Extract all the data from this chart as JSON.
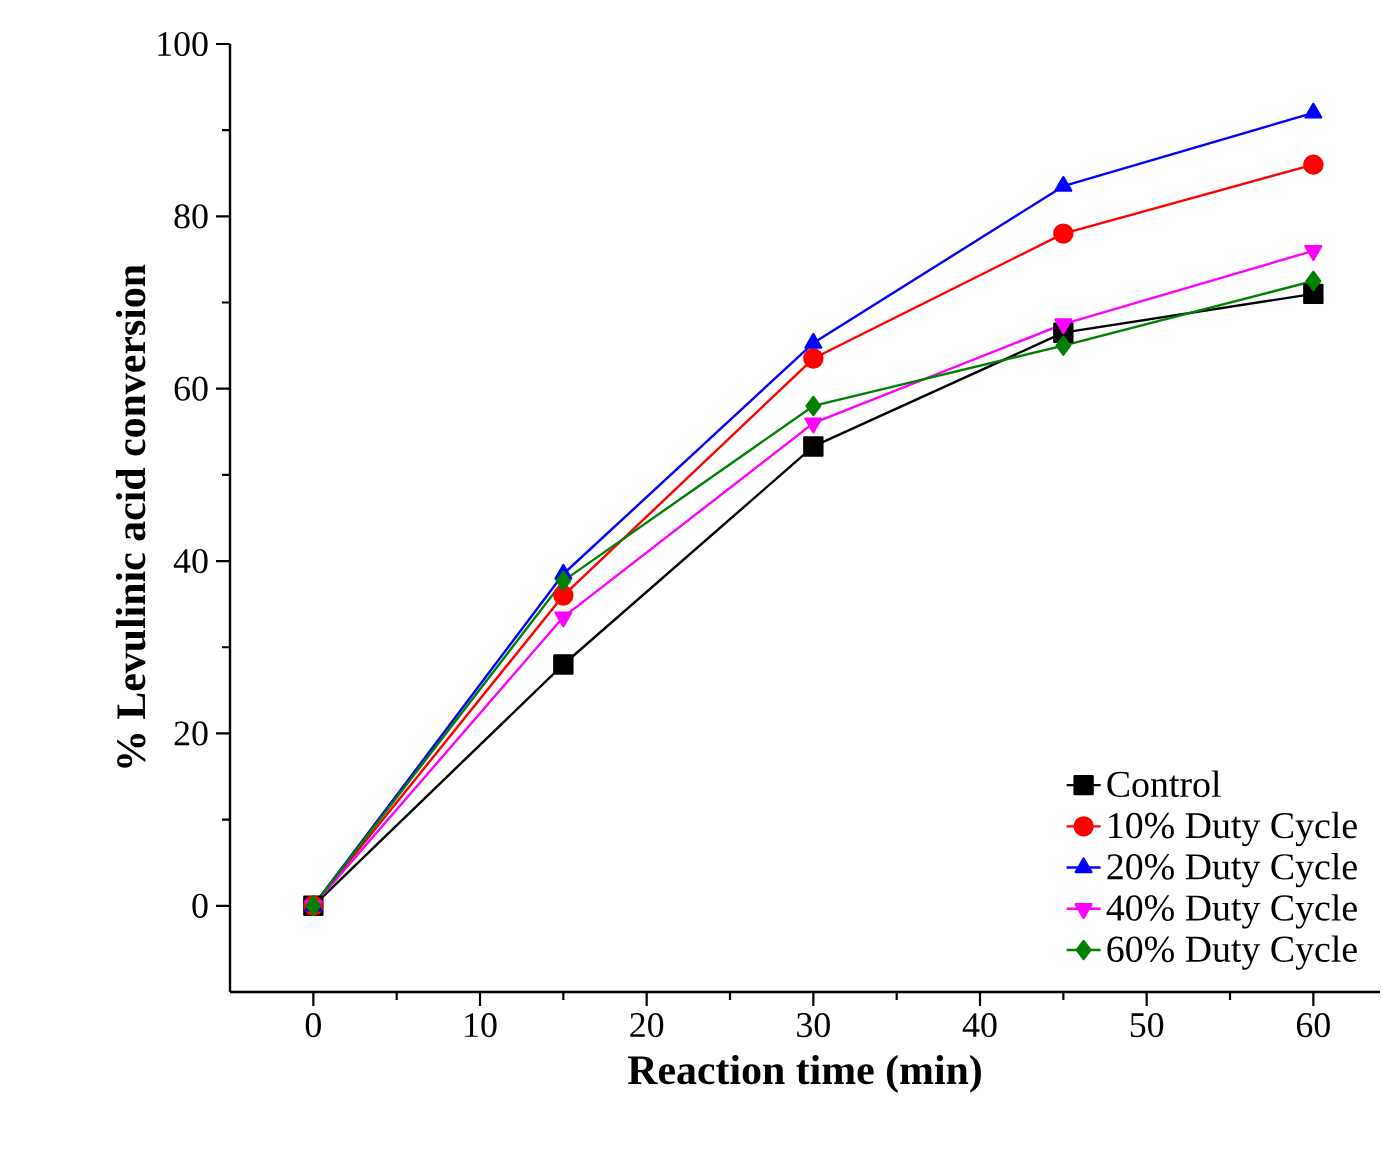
{
  "chart_data": {
    "type": "line",
    "xlabel": "Reaction time (min)",
    "ylabel": "% Levulinic acid conversion",
    "x": [
      0,
      15,
      30,
      45,
      60
    ],
    "series": [
      {
        "name": "Control",
        "color": "#000000",
        "marker": "square",
        "values": [
          0,
          28,
          53.3,
          66.5,
          71
        ]
      },
      {
        "name": "10% Duty Cycle",
        "color": "#ff0000",
        "marker": "circle",
        "values": [
          0,
          36,
          63.5,
          78,
          86
        ]
      },
      {
        "name": "20% Duty Cycle",
        "color": "#0000ff",
        "marker": "triangle",
        "values": [
          0,
          38.5,
          65.3,
          83.5,
          92
        ]
      },
      {
        "name": "40% Duty Cycle",
        "color": "#ff00ff",
        "marker": "triangle down",
        "values": [
          0,
          33.5,
          56,
          67.5,
          76
        ]
      },
      {
        "name": "60% Duty Cycle",
        "color": "#008000",
        "marker": "diamond",
        "values": [
          0,
          37.7,
          58,
          65,
          72.5
        ]
      }
    ],
    "xlim": [
      -5,
      64
    ],
    "ylim": [
      -10,
      100
    ],
    "xticks": [
      0,
      10,
      20,
      30,
      40,
      50,
      60
    ],
    "yticks": [
      0,
      20,
      40,
      60,
      80,
      100
    ],
    "legend": "bottom right",
    "grid": false,
    "line_style": "solid"
  }
}
